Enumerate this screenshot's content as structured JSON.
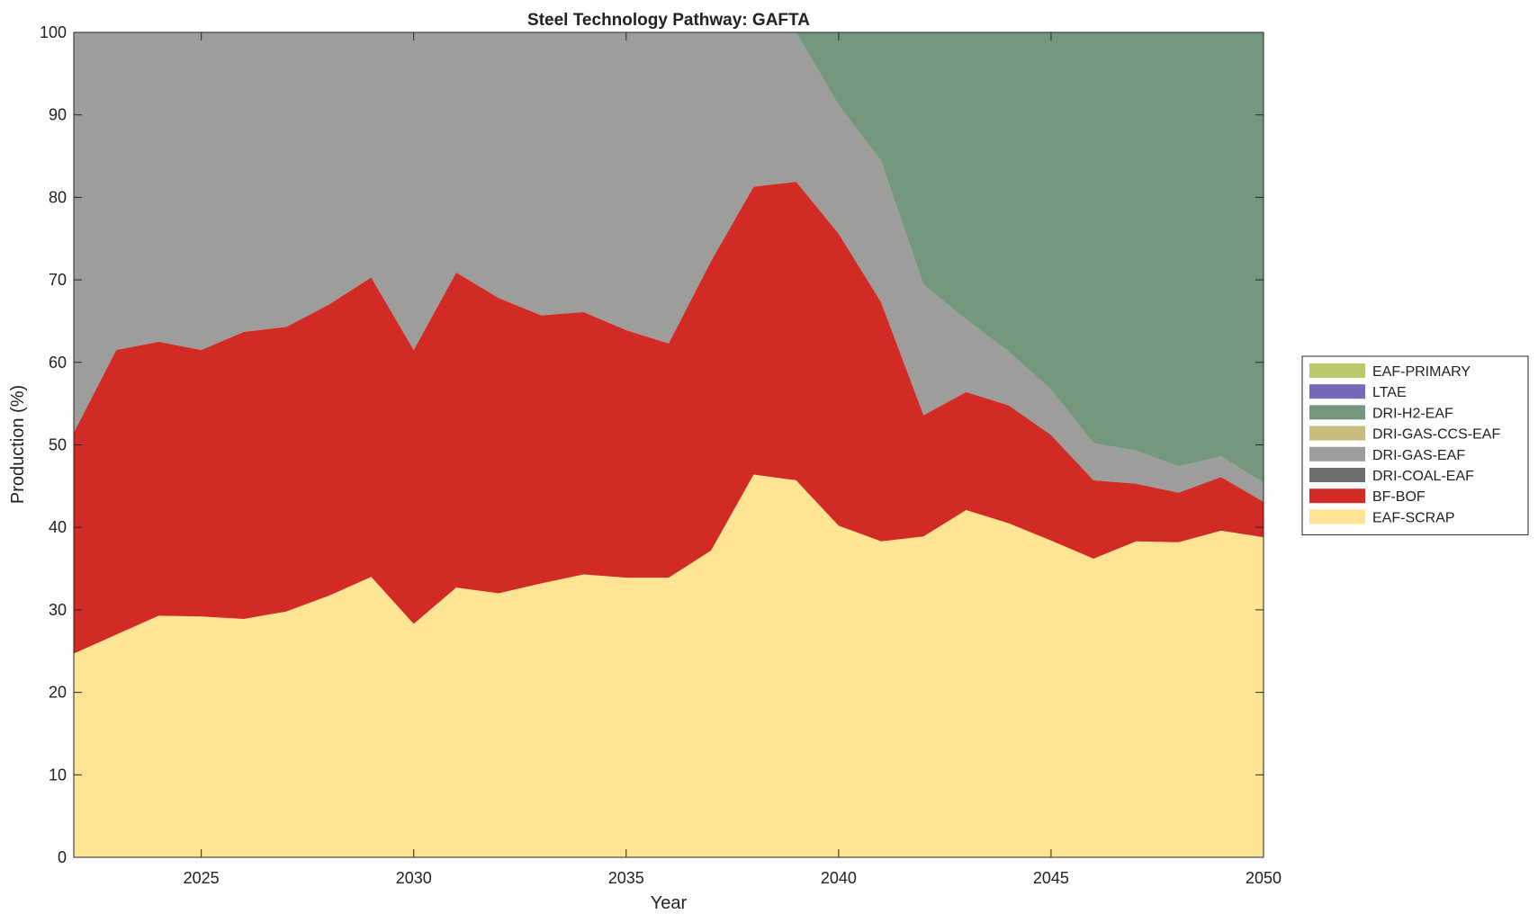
{
  "chart_data": {
    "type": "area",
    "stacked": true,
    "title": "Steel Technology Pathway: GAFTA",
    "xlabel": "Year",
    "ylabel": "Production (%)",
    "xlim": [
      2022,
      2050
    ],
    "ylim": [
      0,
      100
    ],
    "xticks": [
      2025,
      2030,
      2035,
      2040,
      2045,
      2050
    ],
    "yticks": [
      0,
      10,
      20,
      30,
      40,
      50,
      60,
      70,
      80,
      90,
      100
    ],
    "grid": false,
    "legend_placement": "right",
    "x": [
      2022,
      2023,
      2024,
      2025,
      2026,
      2027,
      2028,
      2029,
      2030,
      2031,
      2032,
      2033,
      2034,
      2035,
      2036,
      2037,
      2038,
      2039,
      2040,
      2041,
      2042,
      2043,
      2044,
      2045,
      2046,
      2047,
      2048,
      2049,
      2050
    ],
    "series": [
      {
        "name": "EAF-SCRAP",
        "color": "#ffe493",
        "values": [
          24.7,
          27.0,
          29.3,
          29.2,
          28.9,
          29.8,
          31.7,
          34.0,
          28.3,
          32.7,
          32.0,
          33.2,
          34.3,
          33.9,
          33.9,
          37.2,
          46.4,
          45.7,
          40.2,
          38.3,
          38.9,
          42.1,
          40.5,
          38.4,
          36.2,
          38.3,
          38.2,
          39.6,
          38.8
        ]
      },
      {
        "name": "BF-BOF",
        "color": "#d22a25",
        "values": [
          26.8,
          34.5,
          33.2,
          32.3,
          34.8,
          34.5,
          35.3,
          36.3,
          33.2,
          38.2,
          35.8,
          32.5,
          31.8,
          30.0,
          28.4,
          35.1,
          34.9,
          36.2,
          35.4,
          29.0,
          14.7,
          14.3,
          14.3,
          12.8,
          9.5,
          7.0,
          6.0,
          6.5,
          4.3
        ]
      },
      {
        "name": "DRI-COAL-EAF",
        "color": "#6e6e6e",
        "values": [
          0,
          0,
          0,
          0,
          0,
          0,
          0,
          0,
          0,
          0,
          0,
          0,
          0,
          0,
          0,
          0,
          0,
          0,
          0,
          0,
          0,
          0,
          0,
          0,
          0,
          0,
          0,
          0,
          0
        ]
      },
      {
        "name": "DRI-GAS-EAF",
        "color": "#9d9d9b",
        "values": [
          48.5,
          38.5,
          37.5,
          38.5,
          36.3,
          35.7,
          33.0,
          29.7,
          38.5,
          29.1,
          32.2,
          34.3,
          33.9,
          36.1,
          37.7,
          27.7,
          18.7,
          18.1,
          15.6,
          17.1,
          15.8,
          8.8,
          6.5,
          5.5,
          4.5,
          4.0,
          3.2,
          2.5,
          2.3
        ]
      },
      {
        "name": "DRI-GAS-CCS-EAF",
        "color": "#c5bc7e",
        "values": [
          0,
          0,
          0,
          0,
          0,
          0,
          0,
          0,
          0,
          0,
          0,
          0,
          0,
          0,
          0,
          0,
          0,
          0,
          0,
          0,
          0,
          0,
          0,
          0,
          0,
          0,
          0,
          0,
          0
        ]
      },
      {
        "name": "DRI-H2-EAF",
        "color": "#75977d",
        "values": [
          0,
          0,
          0,
          0,
          0,
          0,
          0,
          0,
          0,
          0,
          0,
          0,
          0,
          0,
          0,
          0,
          0,
          0,
          8.8,
          15.6,
          30.6,
          34.8,
          38.7,
          43.3,
          49.8,
          50.7,
          52.6,
          51.4,
          54.6
        ]
      },
      {
        "name": "LTAE",
        "color": "#736ab8",
        "values": [
          0,
          0,
          0,
          0,
          0,
          0,
          0,
          0,
          0,
          0,
          0,
          0,
          0,
          0,
          0,
          0,
          0,
          0,
          0,
          0,
          0,
          0,
          0,
          0,
          0,
          0,
          0,
          0,
          0
        ]
      },
      {
        "name": "EAF-PRIMARY",
        "color": "#bdc76b",
        "values": [
          0,
          0,
          0,
          0,
          0,
          0,
          0,
          0,
          0,
          0,
          0,
          0,
          0,
          0,
          0,
          0,
          0,
          0,
          0,
          0,
          0,
          0,
          0,
          0,
          0,
          0,
          0,
          0,
          0
        ]
      }
    ]
  }
}
